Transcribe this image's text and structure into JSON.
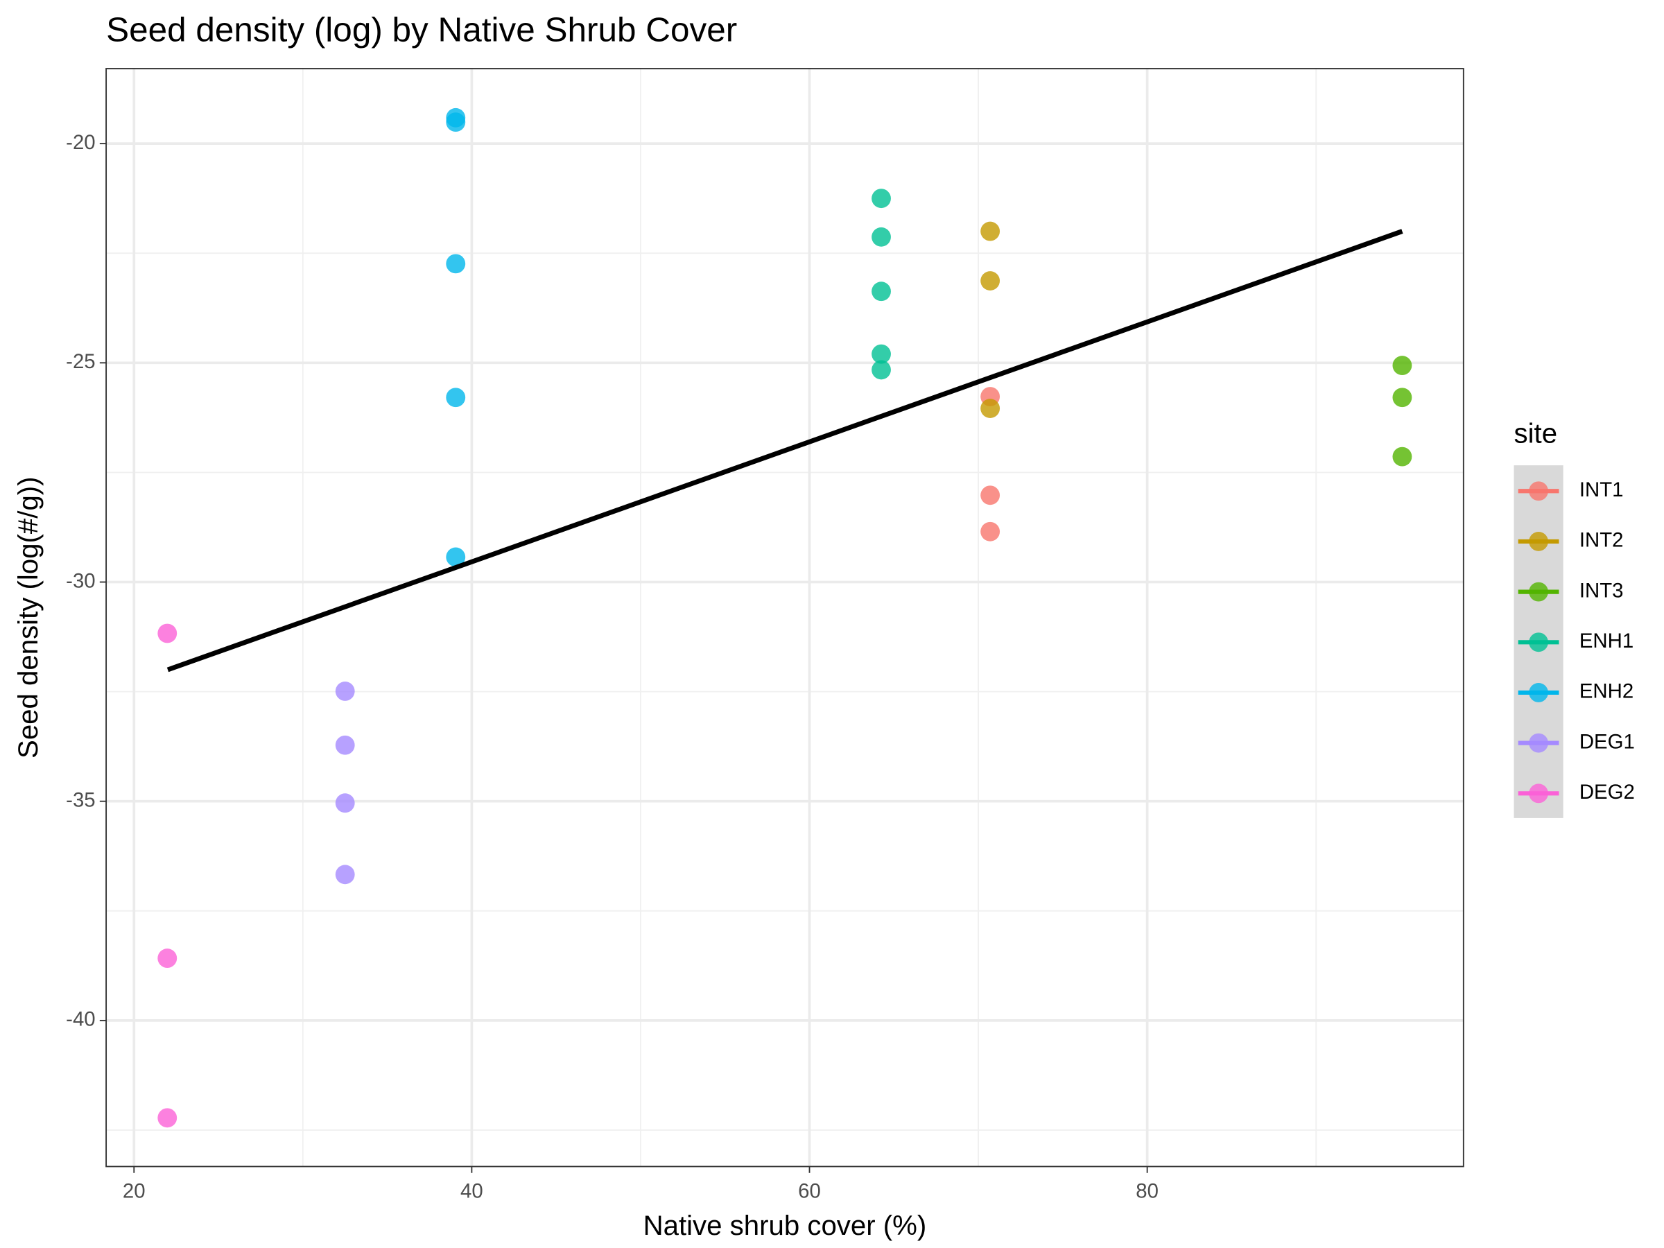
{
  "chart_data": {
    "type": "scatter",
    "title": "Seed density (log) by Native Shrub Cover",
    "x_label": "Native shrub cover (%)",
    "y_label": "Seed density (log(#/g))",
    "legend_title": "site",
    "legend": "right",
    "grid": true,
    "xlim": [
      18.35,
      98.73
    ],
    "ylim": [
      -43.33,
      -18.29
    ],
    "xticks": [
      20,
      40,
      60,
      80
    ],
    "yticks": [
      -20,
      -25,
      -30,
      -35,
      -40
    ],
    "xminor": [
      30,
      50,
      70,
      90
    ],
    "yminor": [
      -22.5,
      -27.5,
      -32.5,
      -37.5,
      -42.5
    ],
    "series": [
      {
        "name": "INT1",
        "color": "#F8766D",
        "x": [
          70.7,
          70.7,
          70.7
        ],
        "values": [
          -25.77,
          -28.02,
          -28.85
        ]
      },
      {
        "name": "INT2",
        "color": "#C49A00",
        "x": [
          70.7,
          70.7,
          70.7
        ],
        "values": [
          -22.0,
          -23.13,
          -26.04
        ]
      },
      {
        "name": "INT3",
        "color": "#53B400",
        "x": [
          95.1,
          95.1,
          95.1
        ],
        "values": [
          -25.06,
          -25.79,
          -27.14
        ]
      },
      {
        "name": "ENH1",
        "color": "#00C094",
        "x": [
          64.25,
          64.25,
          64.25,
          64.25,
          64.25
        ],
        "values": [
          -21.25,
          -22.13,
          -23.37,
          -24.8,
          -25.16
        ]
      },
      {
        "name": "ENH2",
        "color": "#00B6EB",
        "x": [
          39.05,
          39.05,
          39.05,
          39.05,
          39.05
        ],
        "values": [
          -19.41,
          -19.51,
          -22.74,
          -25.79,
          -29.43
        ]
      },
      {
        "name": "DEG1",
        "color": "#A58AFF",
        "x": [
          32.5,
          32.5,
          32.5,
          32.5
        ],
        "values": [
          -32.49,
          -33.72,
          -35.04,
          -36.67
        ]
      },
      {
        "name": "DEG2",
        "color": "#FB61D7",
        "x": [
          21.97,
          21.97,
          21.97
        ],
        "values": [
          -31.17,
          -38.58,
          -42.22
        ]
      }
    ],
    "trend": {
      "color": "#000000",
      "x": [
        22,
        95.1
      ],
      "values": [
        -32.0,
        -22.0
      ]
    }
  }
}
